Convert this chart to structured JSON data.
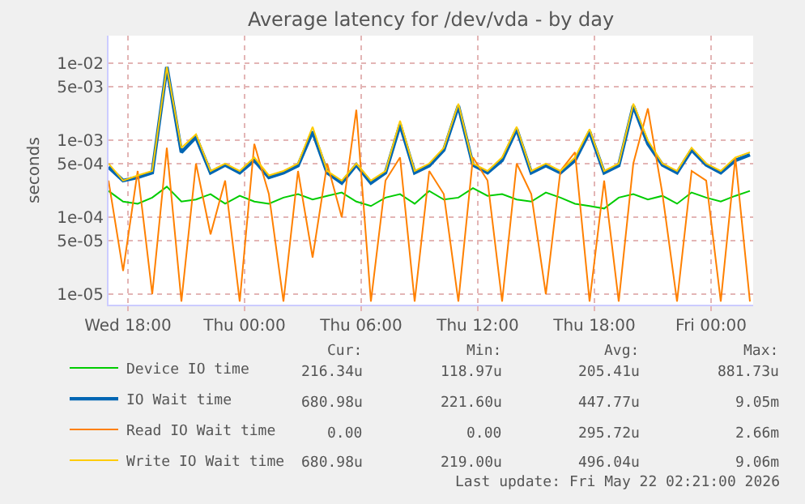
{
  "chart_data": {
    "type": "line",
    "title": "Average latency for /dev/vda - by day",
    "ylabel": "seconds",
    "x": [
      "2026-05-20T17:00",
      "2026-05-20T17:45",
      "2026-05-20T18:30",
      "2026-05-20T19:15",
      "2026-05-20T20:00",
      "2026-05-20T20:45",
      "2026-05-20T21:30",
      "2026-05-20T22:15",
      "2026-05-20T23:00",
      "2026-05-20T23:45",
      "2026-05-21T00:30",
      "2026-05-21T01:15",
      "2026-05-21T02:00",
      "2026-05-21T02:45",
      "2026-05-21T03:30",
      "2026-05-21T04:15",
      "2026-05-21T05:00",
      "2026-05-21T05:45",
      "2026-05-21T06:30",
      "2026-05-21T07:15",
      "2026-05-21T08:00",
      "2026-05-21T08:45",
      "2026-05-21T09:30",
      "2026-05-21T10:15",
      "2026-05-21T11:00",
      "2026-05-21T11:45",
      "2026-05-21T12:30",
      "2026-05-21T13:15",
      "2026-05-21T14:00",
      "2026-05-21T14:45",
      "2026-05-21T15:30",
      "2026-05-21T16:15",
      "2026-05-21T17:00",
      "2026-05-21T17:45",
      "2026-05-21T18:30",
      "2026-05-21T19:15",
      "2026-05-21T20:00",
      "2026-05-21T20:45",
      "2026-05-21T21:30",
      "2026-05-21T22:15",
      "2026-05-21T23:00",
      "2026-05-21T23:45",
      "2026-05-22T00:30",
      "2026-05-22T01:15",
      "2026-05-22T02:00"
    ],
    "series": [
      {
        "name": "Device IO time",
        "color": "#00cc00",
        "values": [
          0.00022,
          0.00016,
          0.00015,
          0.00018,
          0.00025,
          0.00016,
          0.00017,
          0.0002,
          0.00015,
          0.00019,
          0.00016,
          0.00015,
          0.00018,
          0.0002,
          0.00017,
          0.00019,
          0.00021,
          0.00016,
          0.00014,
          0.00018,
          0.0002,
          0.00015,
          0.00022,
          0.00017,
          0.00018,
          0.00024,
          0.00019,
          0.0002,
          0.00017,
          0.00016,
          0.00021,
          0.00018,
          0.00015,
          0.00014,
          0.00013,
          0.00018,
          0.0002,
          0.00017,
          0.00019,
          0.00015,
          0.00021,
          0.00018,
          0.00016,
          0.00019,
          0.00022
        ]
      },
      {
        "name": "IO Wait time",
        "color": "#0066b3",
        "values": [
          0.00045,
          0.0003,
          0.00033,
          0.00038,
          0.009,
          0.0007,
          0.0011,
          0.00038,
          0.00048,
          0.00038,
          0.00055,
          0.00033,
          0.00038,
          0.00047,
          0.0013,
          0.00038,
          0.00028,
          0.00048,
          0.00028,
          0.00038,
          0.0016,
          0.00038,
          0.00047,
          0.00075,
          0.0028,
          0.00048,
          0.00038,
          0.00055,
          0.0014,
          0.00038,
          0.00047,
          0.00038,
          0.00055,
          0.0013,
          0.00038,
          0.00047,
          0.0028,
          0.0009,
          0.00048,
          0.00038,
          0.00075,
          0.00048,
          0.00038,
          0.00055,
          0.00065
        ]
      },
      {
        "name": "Read IO Wait time",
        "color": "#ff8000",
        "values": [
          0.0003,
          2e-05,
          0.0004,
          1e-05,
          0.0008,
          8e-06,
          0.0005,
          6e-05,
          0.0003,
          8e-06,
          0.0009,
          0.0002,
          8e-06,
          0.0004,
          3e-05,
          0.0005,
          0.0001,
          0.0025,
          8e-06,
          0.0003,
          0.0006,
          8e-06,
          0.0004,
          0.0002,
          8e-06,
          0.0006,
          0.0003,
          8e-06,
          0.0005,
          0.0002,
          1e-05,
          0.0004,
          0.0007,
          8e-06,
          0.0003,
          8e-06,
          0.0005,
          0.0026,
          0.0002,
          8e-06,
          0.0004,
          0.0003,
          8e-06,
          0.0006,
          8e-06
        ]
      },
      {
        "name": "Write IO Wait time",
        "color": "#ffcc00",
        "values": [
          0.0005,
          0.0003,
          0.00035,
          0.0004,
          0.009,
          0.0008,
          0.0012,
          0.0004,
          0.0005,
          0.0004,
          0.0006,
          0.00035,
          0.0004,
          0.0005,
          0.0015,
          0.0004,
          0.0003,
          0.0005,
          0.0003,
          0.0004,
          0.0018,
          0.0004,
          0.0005,
          0.0008,
          0.003,
          0.0005,
          0.0004,
          0.0006,
          0.0015,
          0.0004,
          0.0005,
          0.0004,
          0.0006,
          0.0014,
          0.0004,
          0.0005,
          0.003,
          0.001,
          0.0005,
          0.0004,
          0.0008,
          0.0005,
          0.0004,
          0.0006,
          0.0007
        ]
      }
    ],
    "xlim": [
      "2026-05-20T17:00",
      "2026-05-22T02:10"
    ],
    "xticks": [
      {
        "value": "2026-05-20T18:00",
        "label": "Wed 18:00"
      },
      {
        "value": "2026-05-21T00:00",
        "label": "Thu 00:00"
      },
      {
        "value": "2026-05-21T06:00",
        "label": "Thu 06:00"
      },
      {
        "value": "2026-05-21T12:00",
        "label": "Thu 12:00"
      },
      {
        "value": "2026-05-21T18:00",
        "label": "Thu 18:00"
      },
      {
        "value": "2026-05-22T00:00",
        "label": "Fri 00:00"
      }
    ],
    "ylim": [
      7.3e-06,
      0.023
    ],
    "log": "y",
    "yticks": [
      {
        "value": 1e-05,
        "label": "1e-05"
      },
      {
        "value": 5e-05,
        "label": "5e-05"
      },
      {
        "value": 0.0001,
        "label": "1e-04"
      },
      {
        "value": 0.0005,
        "label": "5e-04"
      },
      {
        "value": 0.001,
        "label": "1e-03"
      },
      {
        "value": 0.005,
        "label": "5e-03"
      },
      {
        "value": 0.01,
        "label": "1e-02"
      }
    ],
    "grid": true,
    "legend": "bottom left",
    "marker": "none",
    "line_style": "solid",
    "annotations": [
      "Cur:",
      "Min:",
      "Avg:",
      "Max:",
      "216.34u",
      "118.97u",
      "205.41u",
      "881.73u",
      "680.98u",
      "221.60u",
      "447.77u",
      "9.05m",
      "0.00",
      "0.00",
      "295.72u",
      "2.66m",
      "680.98u",
      "219.00u",
      "496.04u",
      "9.06m",
      "Last update: Fri May 22 02:21:00 2026"
    ]
  }
}
